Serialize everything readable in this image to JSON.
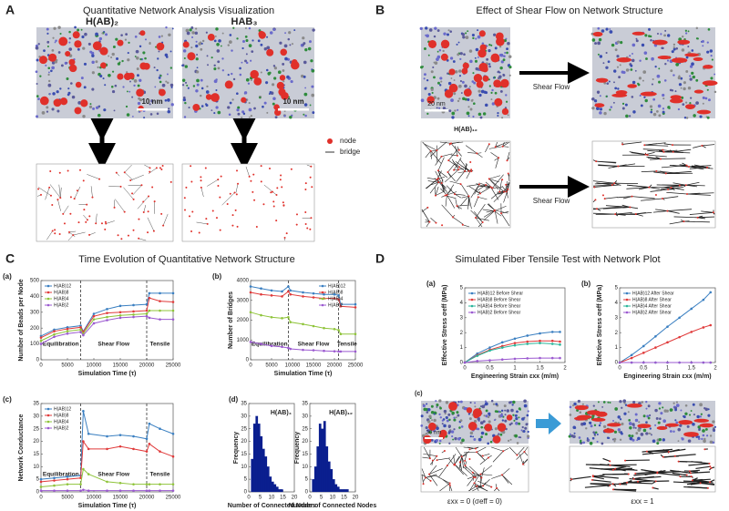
{
  "panels": [
    {
      "label": "A",
      "title": "Quantitative Network Analysis Visualization",
      "image_labels": [
        "H(AB)₂",
        "HAB₃"
      ],
      "scale_bars": [
        "10 nm",
        "10 nm"
      ],
      "legend": [
        "node",
        "bridge"
      ]
    },
    {
      "label": "B",
      "title": "Effect of Shear Flow on Network Structure",
      "scale_bar": "20 nm",
      "image_label": "H(AB)₁₂",
      "arrow_labels": [
        "Shear Flow",
        "Shear Flow"
      ]
    },
    {
      "label": "C",
      "title": "Time Evolution of Quantitative Network Structure"
    },
    {
      "label": "D",
      "title": "Simulated Fiber Tensile Test with Network Plot",
      "sublabel": "(c)",
      "scale_bar": "30 nm",
      "captions": [
        "εxx = 0 (σeff = 0)",
        "εxx = 1"
      ]
    }
  ],
  "chart_data": [
    {
      "type": "line",
      "label": "(a)",
      "xlabel": "Simulation Time (τ)",
      "ylabel": "Number of Beads per Node",
      "x": [
        0,
        2500,
        5000,
        7500,
        8000,
        10000,
        12500,
        15000,
        17500,
        20000,
        20500,
        22500,
        25000
      ],
      "xlim": [
        0,
        25000
      ],
      "xticks": [
        0,
        5000,
        10000,
        15000,
        20000,
        25000
      ],
      "ylim": [
        0,
        500
      ],
      "yticks": [
        0,
        100,
        200,
        300,
        400,
        500
      ],
      "vlines": [
        7500,
        20000
      ],
      "annotations": [
        "Equilibration",
        "Shear Flow",
        "Tensile"
      ],
      "legend": "upper left",
      "series": [
        {
          "name": "H(AB)12",
          "color": "#3a7fc1",
          "values": [
            150,
            190,
            205,
            215,
            180,
            290,
            320,
            340,
            345,
            350,
            420,
            420,
            420
          ]
        },
        {
          "name": "H(AB)8",
          "color": "#e03a3a",
          "values": [
            140,
            180,
            195,
            205,
            175,
            275,
            295,
            300,
            305,
            310,
            390,
            370,
            365
          ]
        },
        {
          "name": "H(AB)4",
          "color": "#8fc43a",
          "values": [
            120,
            160,
            180,
            190,
            165,
            255,
            270,
            280,
            285,
            290,
            310,
            310,
            310
          ]
        },
        {
          "name": "H(AB)2",
          "color": "#9b59d0",
          "values": [
            100,
            145,
            165,
            175,
            155,
            230,
            250,
            265,
            270,
            275,
            265,
            255,
            255
          ]
        }
      ]
    },
    {
      "type": "line",
      "label": "(b)",
      "xlabel": "Simulation Time (τ)",
      "ylabel": "Number of Bridges",
      "x": [
        0,
        2500,
        5000,
        7500,
        9000,
        9500,
        12500,
        15000,
        17500,
        20000,
        21000,
        21500,
        25000
      ],
      "xlim": [
        0,
        25000
      ],
      "xticks": [
        0,
        5000,
        10000,
        15000,
        20000,
        25000
      ],
      "ylim": [
        0,
        4000
      ],
      "yticks": [
        0,
        1000,
        2000,
        3000,
        4000
      ],
      "vlines": [
        9000,
        21000
      ],
      "annotations": [
        "Equilibration",
        "Shear Flow",
        "Tensile"
      ],
      "legend": "upper right",
      "series": [
        {
          "name": "H(AB)12",
          "color": "#3a7fc1",
          "values": [
            3700,
            3600,
            3500,
            3450,
            3700,
            3500,
            3400,
            3350,
            3300,
            3300,
            3250,
            2800,
            2800
          ]
        },
        {
          "name": "H(AB)8",
          "color": "#e03a3a",
          "values": [
            3400,
            3300,
            3250,
            3200,
            3450,
            3300,
            3200,
            3150,
            3100,
            3100,
            3050,
            2700,
            2650
          ]
        },
        {
          "name": "H(AB)4",
          "color": "#8fc43a",
          "values": [
            2400,
            2250,
            2150,
            2100,
            2150,
            1900,
            1800,
            1700,
            1600,
            1550,
            1500,
            1300,
            1300
          ]
        },
        {
          "name": "H(AB)2",
          "color": "#9b59d0",
          "values": [
            900,
            800,
            700,
            650,
            600,
            550,
            500,
            480,
            450,
            430,
            420,
            420,
            420
          ]
        }
      ]
    },
    {
      "type": "line",
      "label": "(c)",
      "xlabel": "Simulation Time (τ)",
      "ylabel": "Network Conductance",
      "x": [
        0,
        2500,
        5000,
        7500,
        8000,
        9000,
        12500,
        15000,
        17500,
        20000,
        20500,
        22500,
        25000
      ],
      "xlim": [
        0,
        25000
      ],
      "xticks": [
        0,
        5000,
        10000,
        15000,
        20000,
        25000
      ],
      "ylim": [
        0,
        35
      ],
      "yticks": [
        0,
        5,
        10,
        15,
        20,
        25,
        30,
        35
      ],
      "vlines": [
        7500,
        20000
      ],
      "annotations": [
        "Equilibration",
        "Shear Flow",
        "Tensile"
      ],
      "legend": "upper left",
      "series": [
        {
          "name": "H(AB)12",
          "color": "#3a7fc1",
          "values": [
            5,
            5.5,
            6,
            6.5,
            32,
            23,
            22,
            22.5,
            22,
            21,
            27,
            25,
            23
          ]
        },
        {
          "name": "H(AB)8",
          "color": "#e03a3a",
          "values": [
            4,
            4.5,
            5,
            5.5,
            20,
            17,
            17,
            18,
            17,
            16,
            19,
            16,
            14
          ]
        },
        {
          "name": "H(AB)4",
          "color": "#8fc43a",
          "values": [
            2,
            2.5,
            3,
            3,
            9,
            7,
            4,
            3.5,
            3,
            3,
            3,
            3,
            3
          ]
        },
        {
          "name": "H(AB)2",
          "color": "#9b59d0",
          "values": [
            0.5,
            0.5,
            0.5,
            0.5,
            0.8,
            0.5,
            0.5,
            0.5,
            0.5,
            0.5,
            0.5,
            0.5,
            0.5
          ]
        }
      ]
    },
    {
      "type": "histogram",
      "label": "(d)",
      "name": "H(AB)₄",
      "xlabel": "Number of Connected Nodes",
      "ylabel": "Frequency",
      "color": "#0a1f8f",
      "bins": [
        1,
        2,
        3,
        4,
        5,
        6,
        7,
        8,
        9,
        10,
        11,
        12,
        13,
        14,
        15
      ],
      "counts": [
        13,
        27,
        30,
        27,
        22,
        17,
        14,
        10,
        6,
        4,
        3,
        2,
        1,
        1
      ],
      "xlim": [
        0,
        20
      ],
      "xticks": [
        0,
        5,
        10,
        15,
        20
      ],
      "ylim": [
        0,
        35
      ],
      "yticks": [
        0,
        5,
        10,
        15,
        20,
        25,
        30,
        35
      ]
    },
    {
      "type": "histogram",
      "name": "H(AB)₁₂",
      "xlabel": "Number of Connected Nodes",
      "ylabel": "Frequency",
      "color": "#0a1f8f",
      "bins": [
        1,
        2,
        3,
        4,
        5,
        6,
        7,
        8,
        9,
        10,
        11,
        12,
        13,
        14,
        15,
        16,
        17
      ],
      "counts": [
        5,
        10,
        18,
        27,
        25,
        28,
        18,
        12,
        9,
        5,
        3,
        2,
        1,
        1,
        1,
        1
      ],
      "xlim": [
        0,
        20
      ],
      "xticks": [
        0,
        5,
        10,
        15,
        20
      ],
      "ylim": [
        0,
        35
      ],
      "yticks": [
        0,
        5,
        10,
        15,
        20,
        25,
        30,
        35
      ]
    },
    {
      "type": "line",
      "label": "(a)",
      "xlabel": "Engineering Strain εxx (m/m)",
      "ylabel": "Effective Stress σeff (MPa)",
      "x": [
        0,
        0.25,
        0.5,
        0.75,
        1,
        1.25,
        1.5,
        1.75,
        1.9
      ],
      "xlim": [
        0,
        2
      ],
      "xticks": [
        0,
        0.5,
        1,
        1.5,
        2
      ],
      "ylim": [
        0,
        5
      ],
      "yticks": [
        0,
        1,
        2,
        3,
        4,
        5
      ],
      "legend": "upper left",
      "series": [
        {
          "name": "H(AB)12 Before Shear",
          "color": "#3a7fc1",
          "values": [
            0,
            0.6,
            1.0,
            1.35,
            1.6,
            1.8,
            1.95,
            2.05,
            2.05
          ]
        },
        {
          "name": "H(AB)8 Before Shear",
          "color": "#e03a3a",
          "values": [
            0,
            0.5,
            0.85,
            1.1,
            1.3,
            1.4,
            1.45,
            1.45,
            1.4
          ]
        },
        {
          "name": "H(AB)4 Before Shear",
          "color": "#2bb59a",
          "values": [
            0,
            0.45,
            0.8,
            1.0,
            1.15,
            1.25,
            1.3,
            1.25,
            1.2
          ]
        },
        {
          "name": "H(AB)2 Before Shear",
          "color": "#9b59d0",
          "values": [
            0,
            0.1,
            0.15,
            0.2,
            0.25,
            0.28,
            0.3,
            0.3,
            0.3
          ]
        }
      ]
    },
    {
      "type": "line",
      "label": "(b)",
      "xlabel": "Engineering Strain εxx (m/m)",
      "ylabel": "Effective Stress σeff (MPa)",
      "x": [
        0,
        0.25,
        0.5,
        0.75,
        1,
        1.25,
        1.5,
        1.75,
        1.9
      ],
      "xlim": [
        0,
        2
      ],
      "xticks": [
        0,
        0.5,
        1,
        1.5,
        2
      ],
      "ylim": [
        0,
        5
      ],
      "yticks": [
        0,
        1,
        2,
        3,
        4,
        5
      ],
      "legend": "upper left",
      "series": [
        {
          "name": "H(AB)12 After Shear",
          "color": "#3a7fc1",
          "values": [
            0,
            0.5,
            1.1,
            1.75,
            2.4,
            3.0,
            3.6,
            4.2,
            4.7
          ]
        },
        {
          "name": "H(AB)8 After Shear",
          "color": "#e03a3a",
          "values": [
            0,
            0.3,
            0.65,
            1.0,
            1.35,
            1.7,
            2.05,
            2.35,
            2.5
          ]
        },
        {
          "name": "H(AB)4 After Shear",
          "color": "#2bb59a",
          "values": [
            0,
            0,
            0,
            0,
            0,
            0,
            0,
            0,
            0
          ]
        },
        {
          "name": "H(AB)2 After Shear",
          "color": "#9b59d0",
          "values": [
            0,
            0,
            0,
            0,
            0,
            0,
            0,
            0,
            0
          ]
        }
      ]
    }
  ]
}
